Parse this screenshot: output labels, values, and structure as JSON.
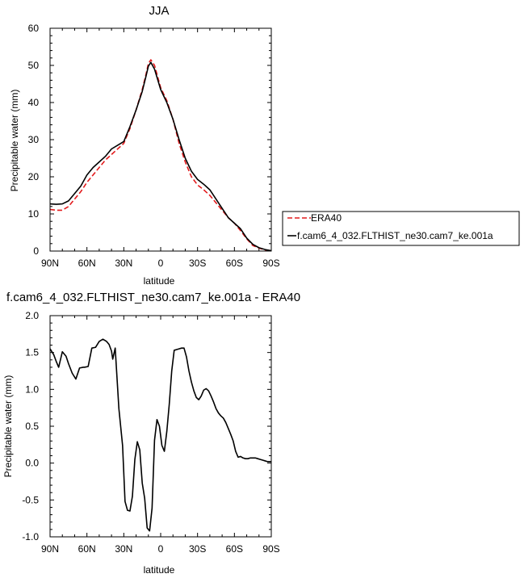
{
  "chart_data": [
    {
      "type": "line",
      "title": "JJA",
      "xlabel": "latitude",
      "ylabel": "Precipitable water (mm)",
      "xlim": [
        90,
        -90
      ],
      "ylim": [
        0,
        60
      ],
      "x_ticks": [
        90,
        60,
        30,
        0,
        -30,
        -60,
        -90
      ],
      "x_tick_labels": [
        "90N",
        "60N",
        "30N",
        "0",
        "30S",
        "60S",
        "90S"
      ],
      "y_ticks": [
        0,
        10,
        20,
        30,
        40,
        50,
        60
      ],
      "y_tick_labels": [
        "0",
        "10",
        "20",
        "30",
        "40",
        "50",
        "60"
      ],
      "grid": false,
      "legend_placement": "right",
      "series": [
        {
          "name": "ERA40",
          "color": "#e31a1c",
          "dash": "dashed",
          "x": [
            90,
            85,
            80,
            75,
            70,
            65,
            60,
            55,
            50,
            45,
            40,
            35,
            30,
            25,
            20,
            15,
            12,
            10,
            8,
            5,
            0,
            -5,
            -10,
            -15,
            -20,
            -25,
            -30,
            -35,
            -40,
            -45,
            -50,
            -55,
            -60,
            -65,
            -70,
            -75,
            -80,
            -85,
            -90
          ],
          "values": [
            11.2,
            11.0,
            11.0,
            12.0,
            14.0,
            16.0,
            18.5,
            20.5,
            22.5,
            24.5,
            26.0,
            27.5,
            29.0,
            33.0,
            38.0,
            43.5,
            47.5,
            50.5,
            51.5,
            50.0,
            44.0,
            40.5,
            35.5,
            29.0,
            24.0,
            20.0,
            17.8,
            16.5,
            15.0,
            13.0,
            11.0,
            9.0,
            7.5,
            5.5,
            3.3,
            1.5,
            0.8,
            0.3,
            0.1
          ]
        },
        {
          "name": "f.cam6_4_032.FLTHIST_ne30.cam7_ke.001a",
          "color": "#000000",
          "dash": "solid",
          "x": [
            90,
            85,
            80,
            75,
            70,
            65,
            60,
            55,
            50,
            45,
            40,
            35,
            30,
            25,
            20,
            15,
            12,
            10,
            8,
            5,
            0,
            -5,
            -10,
            -15,
            -20,
            -25,
            -30,
            -35,
            -40,
            -45,
            -50,
            -55,
            -60,
            -65,
            -70,
            -75,
            -80,
            -85,
            -90
          ],
          "values": [
            12.7,
            12.6,
            12.7,
            13.5,
            15.5,
            17.5,
            20.5,
            22.5,
            24.0,
            25.5,
            27.5,
            28.5,
            29.5,
            33.5,
            38.0,
            43.0,
            47.0,
            49.8,
            50.8,
            49.0,
            43.5,
            40.0,
            35.5,
            30.0,
            25.0,
            21.5,
            19.3,
            18.0,
            16.5,
            14.0,
            11.5,
            9.0,
            7.5,
            6.0,
            3.5,
            1.8,
            0.9,
            0.4,
            0.1
          ]
        }
      ]
    },
    {
      "type": "line",
      "title": "f.cam6_4_032.FLTHIST_ne30.cam7_ke.001a - ERA40",
      "xlabel": "latitude",
      "ylabel": "Precipitable water (mm)",
      "xlim": [
        90,
        -90
      ],
      "ylim": [
        -1.0,
        2.0
      ],
      "x_ticks": [
        90,
        60,
        30,
        0,
        -30,
        -60,
        -90
      ],
      "x_tick_labels": [
        "90N",
        "60N",
        "30N",
        "0",
        "30S",
        "60S",
        "90S"
      ],
      "y_ticks": [
        -1.0,
        -0.5,
        0.0,
        0.5,
        1.0,
        1.5,
        2.0
      ],
      "y_tick_labels": [
        "-1.0",
        "-0.5",
        "0.0",
        "0.5",
        "1.0",
        "1.5",
        "2.0"
      ],
      "grid": false,
      "series": [
        {
          "color": "#000000",
          "dash": "solid",
          "x": [
            90,
            87,
            85,
            83,
            80,
            77,
            75,
            72,
            69,
            66,
            63,
            62,
            59,
            56,
            53,
            50,
            47,
            44,
            42,
            40,
            39,
            37,
            34,
            31,
            29,
            27,
            25,
            23,
            21,
            19,
            17,
            15,
            13,
            11,
            9,
            7,
            5,
            3,
            1,
            -1,
            -3,
            -5,
            -7,
            -9,
            -11,
            -13,
            -15,
            -17,
            -19,
            -21,
            -23,
            -25,
            -27,
            -29,
            -31,
            -33,
            -35,
            -37,
            -39,
            -41,
            -43,
            -45,
            -47,
            -49,
            -51,
            -53,
            -55,
            -57,
            -59,
            -61,
            -63,
            -65,
            -67,
            -69,
            -71,
            -73,
            -75,
            -77,
            -79,
            -81,
            -83,
            -85,
            -87,
            -89,
            -90
          ],
          "values": [
            1.55,
            1.47,
            1.38,
            1.3,
            1.51,
            1.45,
            1.35,
            1.22,
            1.14,
            1.29,
            1.3,
            1.3,
            1.31,
            1.56,
            1.57,
            1.65,
            1.68,
            1.65,
            1.61,
            1.52,
            1.41,
            1.56,
            0.74,
            0.24,
            -0.52,
            -0.64,
            -0.65,
            -0.45,
            0.05,
            0.29,
            0.18,
            -0.27,
            -0.48,
            -0.88,
            -0.92,
            -0.61,
            0.31,
            0.59,
            0.5,
            0.24,
            0.16,
            0.43,
            0.8,
            1.25,
            1.53,
            1.54,
            1.55,
            1.56,
            1.56,
            1.44,
            1.25,
            1.1,
            0.98,
            0.89,
            0.86,
            0.91,
            0.99,
            1.01,
            0.98,
            0.91,
            0.83,
            0.74,
            0.68,
            0.64,
            0.61,
            0.55,
            0.47,
            0.39,
            0.3,
            0.16,
            0.08,
            0.09,
            0.07,
            0.06,
            0.06,
            0.07,
            0.07,
            0.07,
            0.06,
            0.05,
            0.04,
            0.03,
            0.02,
            0.02,
            0.02
          ]
        }
      ]
    }
  ]
}
